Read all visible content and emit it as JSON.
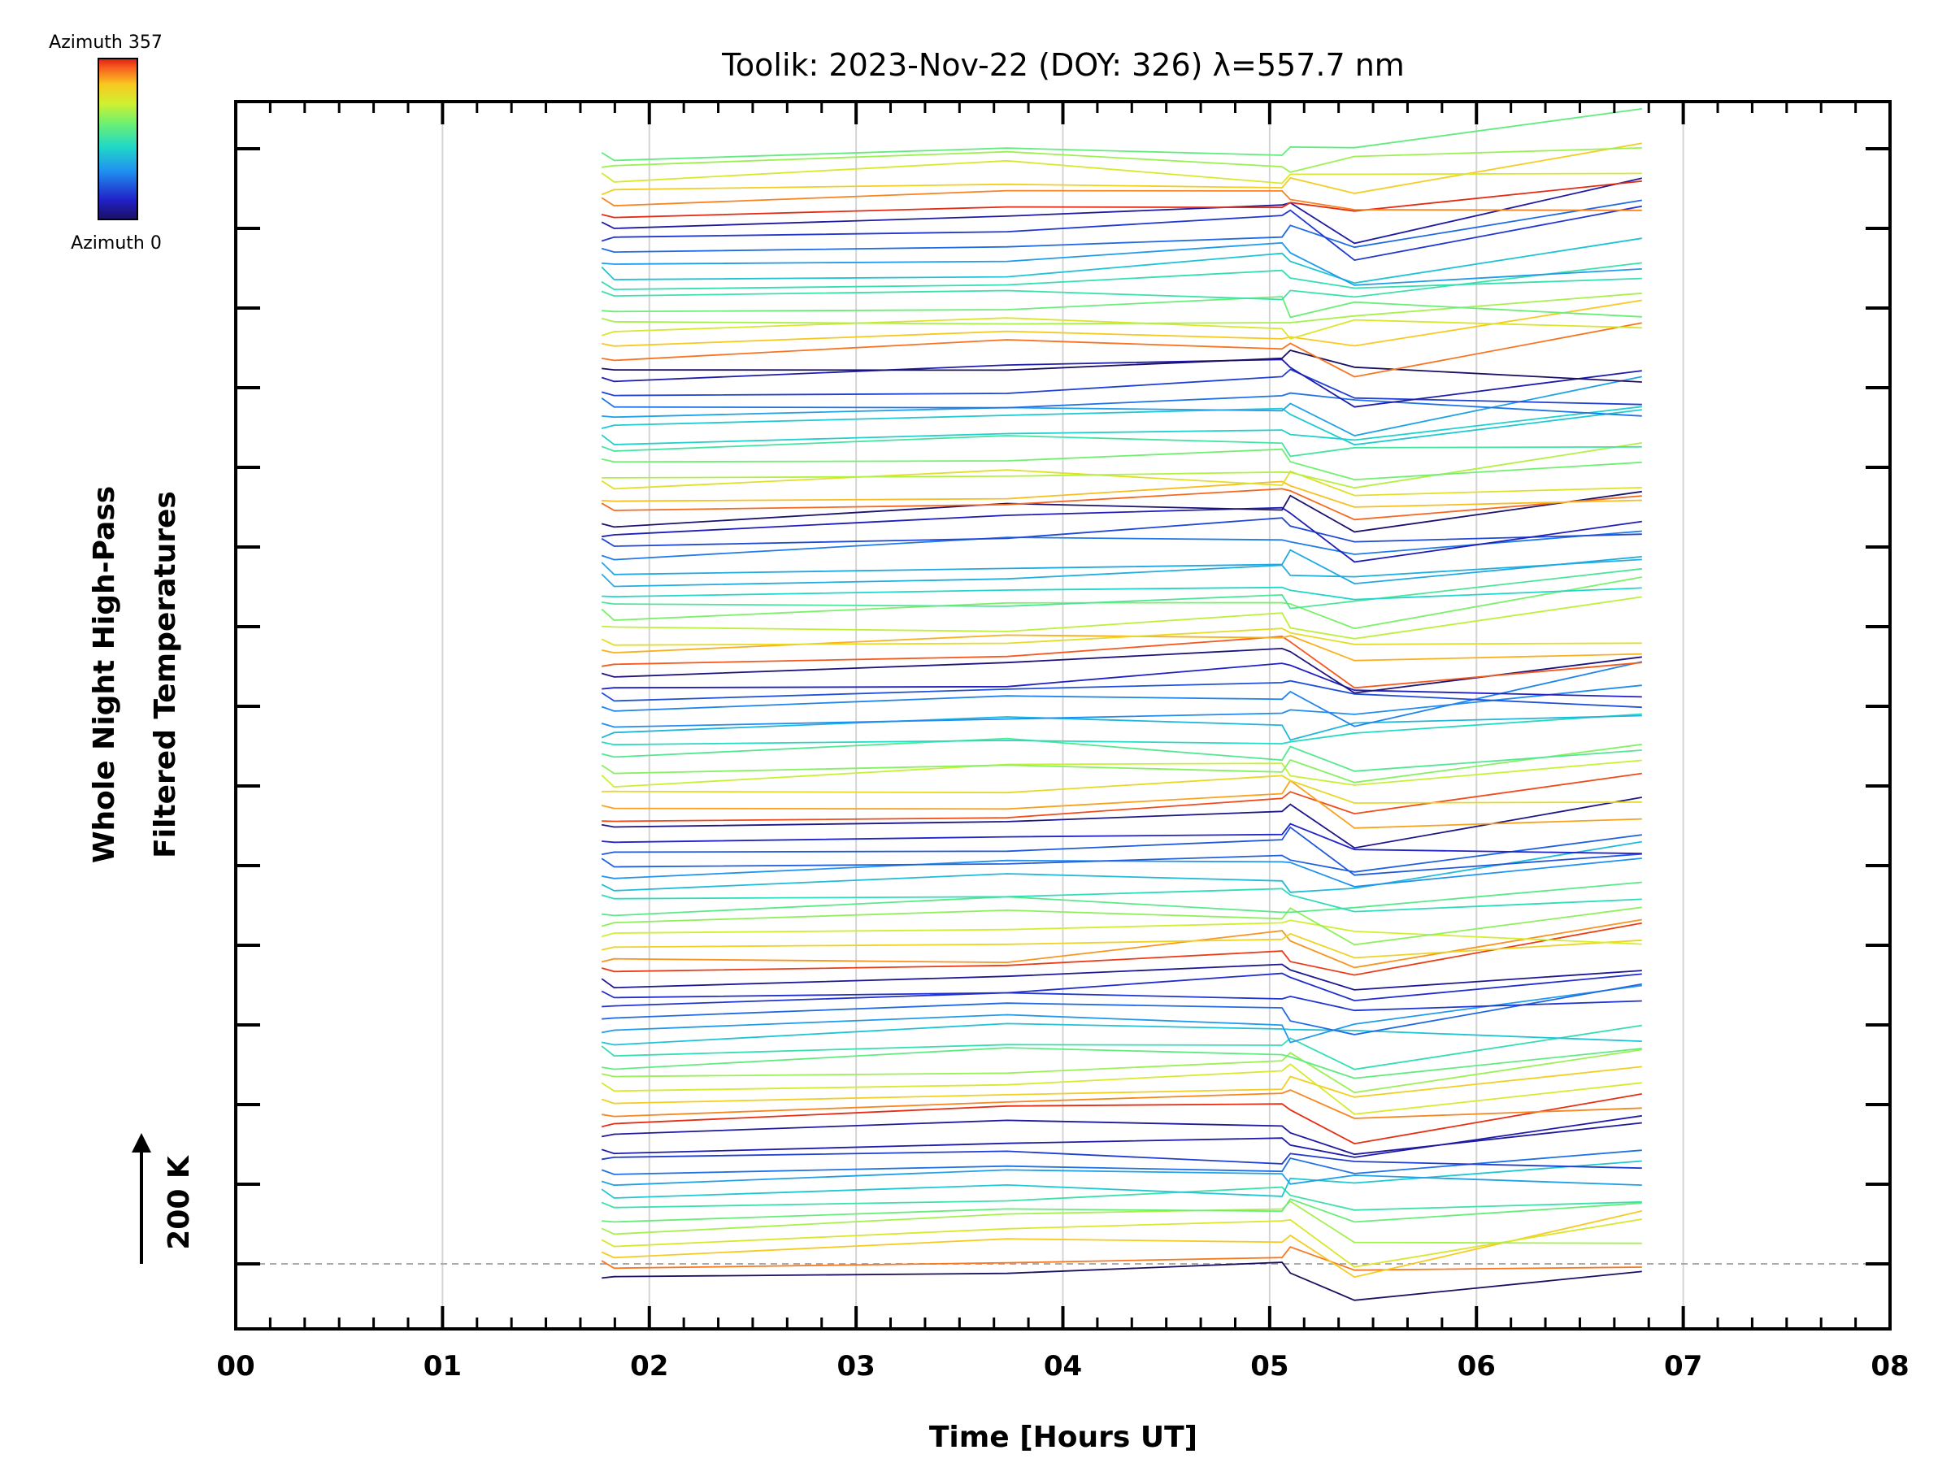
{
  "chart_data": {
    "type": "line",
    "title": "Toolik: 2023-Nov-22 (DOY: 326) λ=557.7 nm",
    "xlabel": "Time [Hours UT]",
    "ylabel": [
      "Whole Night High-Pass",
      "Filtered Temperatures"
    ],
    "xlim": [
      0,
      8
    ],
    "x_ticks": [
      "00",
      "01",
      "02",
      "03",
      "04",
      "05",
      "06",
      "07",
      "08"
    ],
    "scale_label": "200 K",
    "grid": "vertical",
    "colorbar": {
      "top_label": "Azimuth 357",
      "bottom_label": "Azimuth 0",
      "colormap": "rainbow"
    },
    "x_samples": [
      1.77,
      1.83,
      3.73,
      5.06,
      5.1,
      5.41,
      6.8
    ],
    "num_traces": 96,
    "traces_per_group": 12,
    "description_of_series": "Stacked high-pass filtered temperature traces, one per azimuth (0 to 357), offset vertically"
  }
}
